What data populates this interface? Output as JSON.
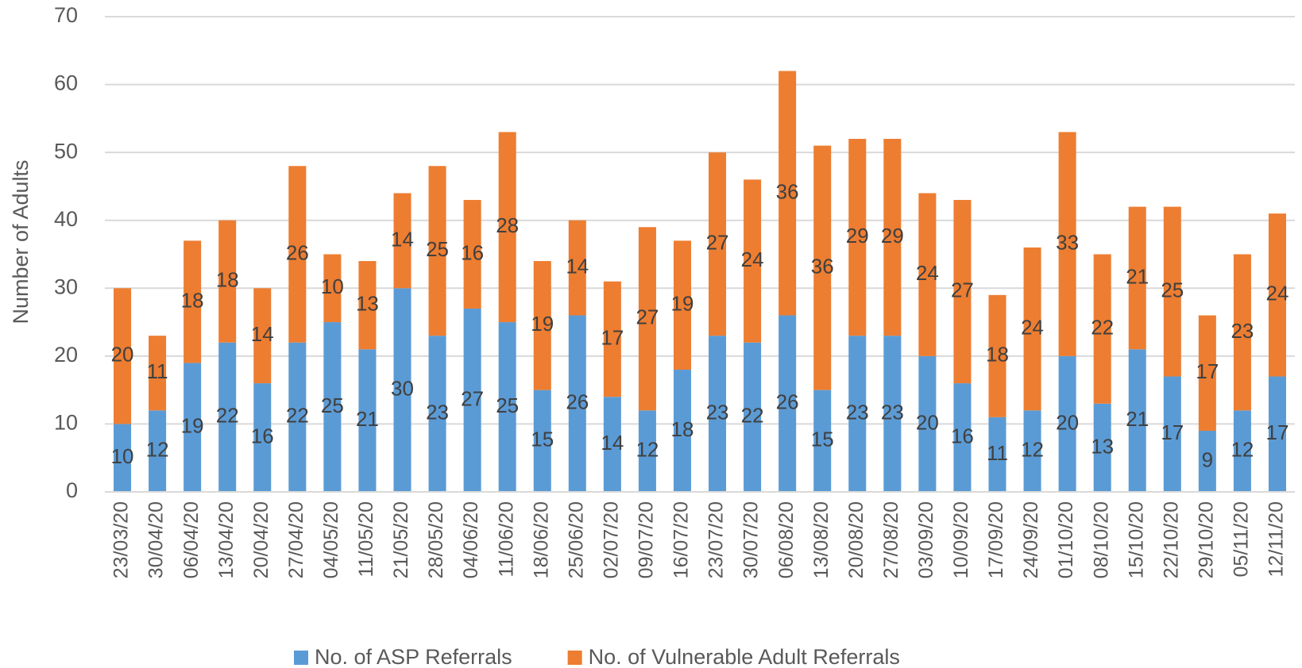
{
  "chart_data": {
    "type": "stacked_bar",
    "ylabel": "Number of Adults",
    "categories": [
      "23/03/20",
      "30/04/20",
      "06/04/20",
      "13/04/20",
      "20/04/20",
      "27/04/20",
      "04/05/20",
      "11/05/20",
      "21/05/20",
      "28/05/20",
      "04/06/20",
      "11/06/20",
      "18/06/20",
      "25/06/20",
      "02/07/20",
      "09/07/20",
      "16/07/20",
      "23/07/20",
      "30/07/20",
      "06/08/20",
      "13/08/20",
      "20/08/20",
      "27/08/20",
      "03/09/20",
      "10/09/20",
      "17/09/20",
      "24/09/20",
      "01/10/20",
      "08/10/20",
      "15/10/20",
      "22/10/20",
      "29/10/20",
      "05/11/20",
      "12/11/20"
    ],
    "series": [
      {
        "name": "No. of ASP Referrals",
        "color": "#5b9bd5",
        "values": [
          10,
          12,
          19,
          22,
          16,
          22,
          25,
          21,
          30,
          23,
          27,
          25,
          15,
          26,
          14,
          12,
          18,
          23,
          22,
          26,
          15,
          23,
          23,
          20,
          16,
          11,
          12,
          20,
          13,
          21,
          17,
          9,
          12,
          17
        ]
      },
      {
        "name": "No. of Vulnerable Adult Referrals",
        "color": "#ed7d31",
        "values": [
          20,
          11,
          18,
          18,
          14,
          26,
          10,
          13,
          14,
          25,
          16,
          28,
          19,
          14,
          17,
          27,
          19,
          27,
          24,
          36,
          36,
          29,
          29,
          24,
          27,
          18,
          24,
          33,
          22,
          21,
          25,
          17,
          23,
          24
        ]
      }
    ],
    "ylim": [
      0,
      70
    ],
    "yticks": [
      0,
      10,
      20,
      30,
      40,
      50,
      60,
      70
    ],
    "grid": true,
    "legend": "bottom"
  }
}
